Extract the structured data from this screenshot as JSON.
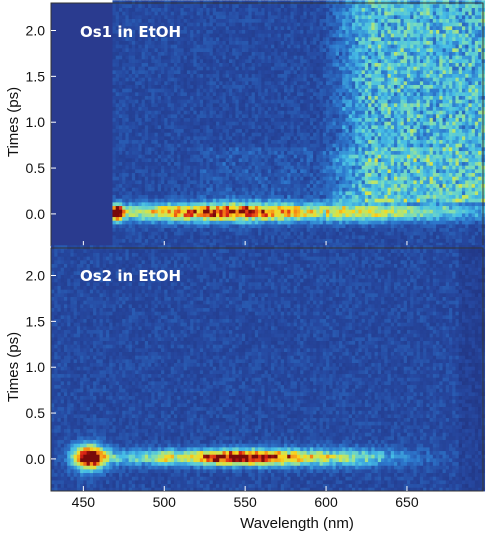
{
  "chart_data": [
    {
      "type": "heatmap",
      "panel_label": "Os1 in EtOH",
      "xlabel": "Wavelength (nm)",
      "ylabel": "Times (ps)",
      "xlim": [
        430,
        697
      ],
      "ylim": [
        -0.35,
        2.3
      ],
      "data_start_nm": 468,
      "x_ticks": [
        450,
        500,
        550,
        600,
        650
      ],
      "y_ticks": [
        "2.0",
        "1.5",
        "1.0",
        "0.5",
        "0.0"
      ],
      "y_tick_values": [
        2.0,
        1.5,
        1.0,
        0.5,
        0.0
      ],
      "features": [
        {
          "kind": "peak",
          "wavelength_nm": 470,
          "time_ps": 0.0,
          "intensity": 0.97
        },
        {
          "kind": "band",
          "from_nm": 475,
          "to_nm": 600,
          "time_ps": 0.0,
          "intensity": 0.9
        },
        {
          "kind": "band",
          "from_nm": 600,
          "to_nm": 697,
          "time_ps": 0.0,
          "intensity": 0.6
        },
        {
          "kind": "long-lived",
          "from_nm": 600,
          "to_nm": 697,
          "intensity": 0.45
        }
      ],
      "grid": false
    },
    {
      "type": "heatmap",
      "panel_label": "Os2 in EtOH",
      "xlabel": "Wavelength (nm)",
      "ylabel": "Times (ps)",
      "xlim": [
        430,
        697
      ],
      "ylim": [
        -0.35,
        2.3
      ],
      "data_start_nm": 430,
      "x_ticks": [
        450,
        500,
        550,
        600,
        650
      ],
      "x_tick_labels": [
        "450",
        "500",
        "550",
        "600",
        "650"
      ],
      "y_ticks": [
        "2.0",
        "1.5",
        "1.0",
        "0.5",
        "0.0"
      ],
      "y_tick_values": [
        2.0,
        1.5,
        1.0,
        0.5,
        0.0
      ],
      "features": [
        {
          "kind": "peak",
          "wavelength_nm": 452,
          "time_ps": 0.0,
          "intensity": 1.0
        },
        {
          "kind": "band",
          "from_nm": 505,
          "to_nm": 585,
          "time_ps": 0.0,
          "intensity": 0.85
        },
        {
          "kind": "band",
          "from_nm": 585,
          "to_nm": 650,
          "time_ps": 0.0,
          "intensity": 0.5
        }
      ],
      "grid": false
    }
  ]
}
